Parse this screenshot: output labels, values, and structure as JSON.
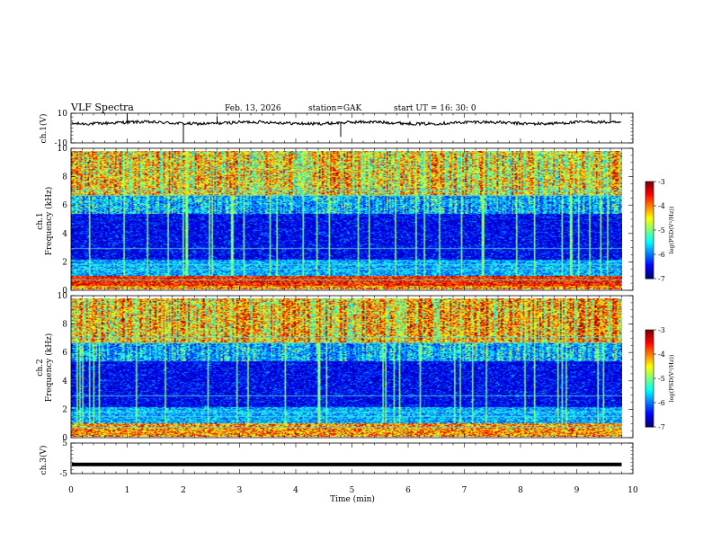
{
  "header": {
    "title": "VLF  Spectra",
    "date": "Feb. 13, 2026",
    "station": "station=GAK",
    "start": "start  UT  =    16: 30: 0"
  },
  "chart_data": [
    {
      "type": "line",
      "name": "ch1-waveform",
      "ylabel": "ch.1(V)",
      "ylim": [
        -10,
        10
      ],
      "yticks": [
        "10",
        "-10"
      ],
      "xlim": [
        0,
        10
      ],
      "baseline_v": 3.5,
      "amplitude_v": 2
    },
    {
      "type": "heatmap",
      "name": "ch1-spectrogram",
      "ylabel": "ch.1\nFrequency  (kHz)",
      "ylim": [
        0,
        10
      ],
      "yticks": [
        "0",
        "2",
        "4",
        "6",
        "8",
        "10"
      ],
      "xlim": [
        0,
        9.8
      ],
      "colorbar": {
        "label": "log(PSD(V²/Hz))",
        "range": [
          -7,
          -3
        ],
        "ticks": [
          "-3",
          "-4",
          "-5",
          "-6",
          "-7"
        ]
      }
    },
    {
      "type": "heatmap",
      "name": "ch2-spectrogram",
      "ylabel": "ch.2\nFrequency  (kHz)",
      "ylim": [
        0,
        10
      ],
      "yticks": [
        "0",
        "2",
        "4",
        "6",
        "8",
        "10"
      ],
      "xlim": [
        0,
        9.8
      ],
      "colorbar": {
        "label": "log(PSD(V²/Hz))",
        "range": [
          -7,
          -3
        ],
        "ticks": [
          "-3",
          "-4",
          "-5",
          "-6",
          "-7"
        ]
      }
    },
    {
      "type": "line",
      "name": "ch3-waveform",
      "ylabel": "ch.3(V)",
      "ylim": [
        -5,
        5
      ],
      "yticks": [
        "5",
        "-5"
      ],
      "xlim": [
        0,
        10
      ],
      "baseline_v": -2
    }
  ],
  "xaxis": {
    "label": "Time  (min)",
    "ticks": [
      "0",
      "1",
      "2",
      "3",
      "4",
      "5",
      "6",
      "7",
      "8",
      "9",
      "10"
    ]
  }
}
